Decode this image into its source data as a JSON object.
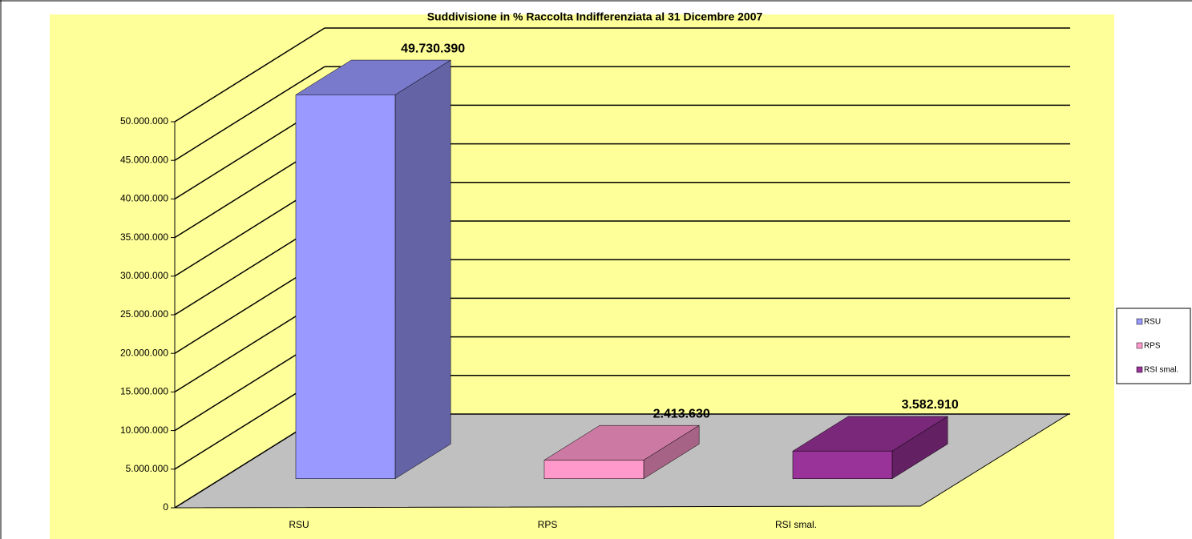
{
  "chart_data": {
    "type": "bar3d",
    "title": "Suddivisione in % Raccolta Indifferenziata al 31 Dicembre 2007",
    "categories": [
      "RSU",
      "RPS",
      "RSI smal."
    ],
    "values": [
      49730390,
      2413630,
      3582910
    ],
    "value_labels": [
      "49.730.390",
      "2.413.630",
      "3.582.910"
    ],
    "colors": [
      "#9999ff",
      "#ff99cc",
      "#993399"
    ],
    "ylim": [
      0,
      50000000
    ],
    "yticks": [
      0,
      {
        "value": 5000000,
        "label": "5.000.000"
      },
      {
        "value": 10000000,
        "label": "10.000.000"
      },
      {
        "value": 15000000,
        "label": "15.000.000"
      },
      {
        "value": 20000000,
        "label": "20.000.000"
      },
      {
        "value": 25000000,
        "label": "25.000.000"
      },
      {
        "value": 30000000,
        "label": "30.000.000"
      },
      {
        "value": 35000000,
        "label": "35.000.000"
      },
      {
        "value": 40000000,
        "label": "40.000.000"
      },
      {
        "value": 45000000,
        "label": "45.000.000"
      },
      {
        "value": 50000000,
        "label": "50.000.000"
      }
    ],
    "grid": true,
    "legend": "right"
  }
}
